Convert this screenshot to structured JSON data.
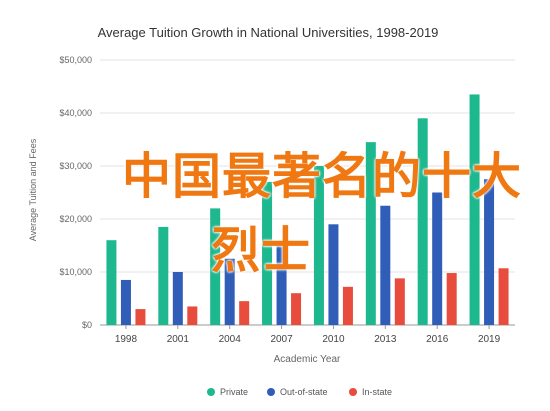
{
  "chart_data": {
    "type": "bar",
    "title": "Average Tuition Growth in National Universities, 1998-2019",
    "xlabel": "Academic Year",
    "ylabel": "Average Tuition and Fees",
    "categories": [
      "1998",
      "2001",
      "2004",
      "2007",
      "2010",
      "2013",
      "2016",
      "2019"
    ],
    "series": [
      {
        "name": "Private",
        "color": "#1db88e",
        "values": [
          16000,
          18500,
          22000,
          27000,
          30000,
          34500,
          39000,
          43500
        ]
      },
      {
        "name": "Out-of-state",
        "color": "#2f5db7",
        "values": [
          8500,
          10000,
          12500,
          15500,
          19000,
          22500,
          25000,
          27500
        ]
      },
      {
        "name": "In-state",
        "color": "#e74c3c",
        "values": [
          3000,
          3500,
          4500,
          6000,
          7200,
          8800,
          9800,
          10700
        ]
      }
    ],
    "ylim": [
      0,
      50000
    ],
    "yticks": [
      "$0",
      "$10,000",
      "$20,000",
      "$30,000",
      "$40,000",
      "$50,000"
    ],
    "grid": true,
    "legend_position": "bottom"
  },
  "overlay": {
    "line1": "中国最著名的十大",
    "line2": "烈士",
    "color": "#f07812"
  }
}
